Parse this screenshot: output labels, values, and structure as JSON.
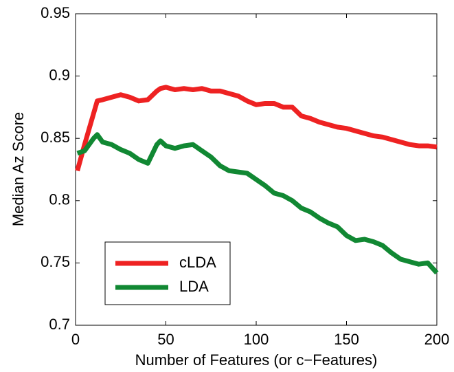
{
  "chart_data": {
    "type": "line",
    "x_label": "Number of Features (or c−Features)",
    "y_label": "Median Az Score",
    "x": [
      1,
      5,
      10,
      12,
      15,
      20,
      25,
      30,
      35,
      40,
      45,
      47,
      50,
      55,
      60,
      65,
      70,
      75,
      80,
      85,
      90,
      95,
      100,
      105,
      110,
      115,
      120,
      125,
      130,
      135,
      140,
      145,
      150,
      155,
      160,
      165,
      170,
      175,
      180,
      185,
      190,
      195,
      200
    ],
    "series": [
      {
        "name": "cLDA",
        "color": "#ee2222",
        "values": [
          0.824,
          0.845,
          0.87,
          0.88,
          0.881,
          0.883,
          0.885,
          0.883,
          0.88,
          0.881,
          0.888,
          0.89,
          0.891,
          0.889,
          0.89,
          0.889,
          0.89,
          0.888,
          0.888,
          0.886,
          0.884,
          0.88,
          0.877,
          0.878,
          0.878,
          0.875,
          0.875,
          0.868,
          0.866,
          0.863,
          0.861,
          0.859,
          0.858,
          0.856,
          0.854,
          0.852,
          0.851,
          0.849,
          0.847,
          0.845,
          0.844,
          0.844,
          0.843
        ]
      },
      {
        "name": "LDA",
        "color": "#118833",
        "values": [
          0.838,
          0.84,
          0.85,
          0.853,
          0.847,
          0.845,
          0.841,
          0.838,
          0.833,
          0.83,
          0.845,
          0.848,
          0.844,
          0.842,
          0.844,
          0.845,
          0.84,
          0.835,
          0.828,
          0.824,
          0.823,
          0.822,
          0.817,
          0.812,
          0.806,
          0.804,
          0.8,
          0.794,
          0.791,
          0.786,
          0.782,
          0.779,
          0.772,
          0.768,
          0.769,
          0.767,
          0.764,
          0.758,
          0.753,
          0.751,
          0.749,
          0.75,
          0.742
        ]
      }
    ],
    "xlim": [
      0,
      200
    ],
    "xticks": [
      0,
      50,
      100,
      150,
      200
    ],
    "ylim": [
      0.7,
      0.95
    ],
    "yticks": [
      0.7,
      0.75,
      0.8,
      0.85,
      0.9,
      0.95
    ],
    "legend": "lower left"
  }
}
